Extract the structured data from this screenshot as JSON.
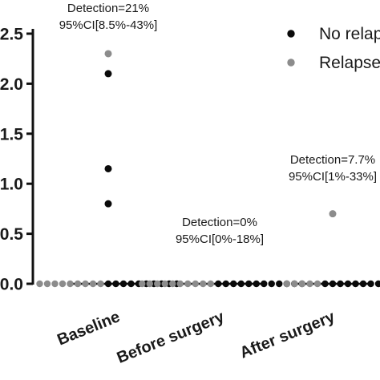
{
  "chart_data": {
    "type": "scatter",
    "categories": [
      "Baseline",
      "Before surgery",
      "After surgery"
    ],
    "ylim": [
      0,
      2.5
    ],
    "y_ticks": [
      "0.0",
      "0.5",
      "1.0",
      "1.5",
      "2.0",
      "2.5"
    ],
    "legend_position": "top-right",
    "series": [
      {
        "name": "No relap",
        "color": "#0a0a0a",
        "points": [
          {
            "category": "Baseline",
            "values": [
              2.1,
              1.15,
              0.8,
              0,
              0,
              0,
              0,
              0,
              0,
              0,
              0,
              0,
              0
            ]
          },
          {
            "category": "Before surgery",
            "values": [
              0,
              0,
              0,
              0,
              0,
              0,
              0,
              0,
              0,
              0,
              0,
              0
            ]
          },
          {
            "category": "After surgery",
            "values": [
              0,
              0,
              0,
              0,
              0,
              0,
              0,
              0
            ]
          }
        ]
      },
      {
        "name": "Relapse",
        "color": "#8c8c8c",
        "points": [
          {
            "category": "Baseline",
            "values": [
              2.3,
              0,
              0,
              0,
              0,
              0,
              0,
              0,
              0,
              0
            ]
          },
          {
            "category": "Before surgery",
            "values": [
              0,
              0,
              0,
              0,
              0,
              0,
              0,
              0,
              0,
              0
            ]
          },
          {
            "category": "After surgery",
            "values": [
              0.7,
              0,
              0,
              0,
              0,
              0
            ]
          }
        ]
      }
    ],
    "annotations": [
      {
        "category": "Baseline",
        "line1": "Detection=21%",
        "line2": "95%CI[8.5%-43%]"
      },
      {
        "category": "Before surgery",
        "line1": "Detection=0%",
        "line2": "95%CI[0%-18%]"
      },
      {
        "category": "After surgery",
        "line1": "Detection=7.7%",
        "line2": "95%CI[1%-33%]"
      }
    ]
  }
}
